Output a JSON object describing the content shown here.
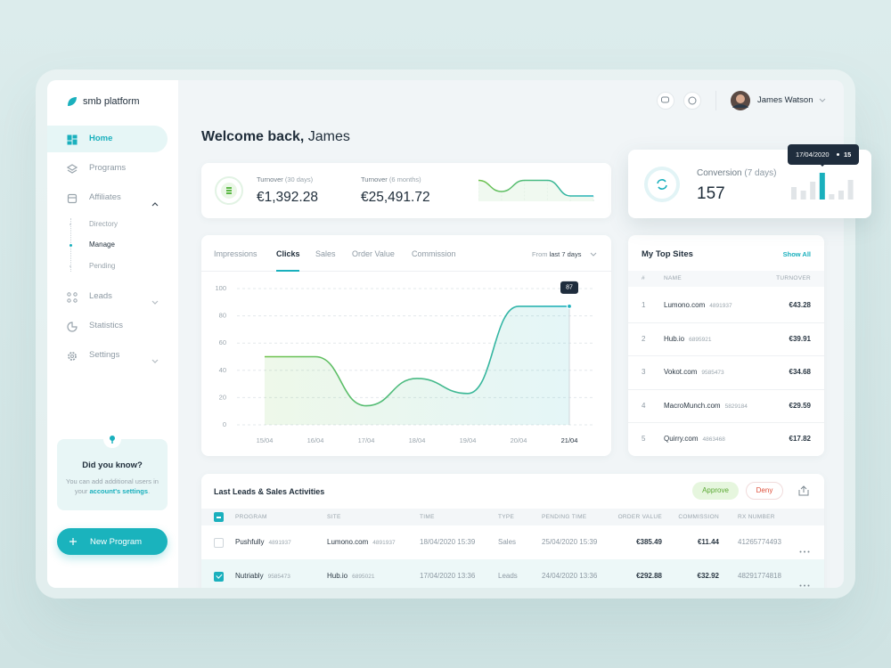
{
  "brand": "smb platform",
  "nav": [
    {
      "label": "Home",
      "active": true
    },
    {
      "label": "Programs"
    },
    {
      "label": "Affiliates",
      "submenu": "open",
      "children": [
        "Directory",
        "Manage",
        "Pending"
      ],
      "active_child": 1
    },
    {
      "label": "Leads",
      "submenu": "closed"
    },
    {
      "label": "Statistics"
    },
    {
      "label": "Settings",
      "submenu": "closed"
    }
  ],
  "tip": {
    "title": "Did you know?",
    "text": "You can add additional users in your",
    "link": "account's settings",
    "end": "."
  },
  "new_program": "New Program",
  "user": "James Watson",
  "welcome": {
    "greeting": "Welcome back,",
    "name": "James"
  },
  "turnover": [
    {
      "label": "Turnover",
      "period": "(30 days)",
      "value": "€1,392.28"
    },
    {
      "label": "Turnover",
      "period": "(6 months)",
      "value": "€25,491.72"
    }
  ],
  "sparkline": {
    "values": [
      18,
      8,
      18,
      18,
      4,
      4
    ],
    "ylim": [
      0,
      20
    ],
    "colors": [
      "#6fc24a",
      "#22b2be"
    ]
  },
  "conversion": {
    "label": "Conversion",
    "period": "(7 days)",
    "value": 157,
    "bars": [
      7,
      5,
      10,
      15,
      3,
      5,
      11
    ],
    "ylim": [
      0,
      15
    ],
    "highlight": 3,
    "tooltip_date": "17/04/2020",
    "color": "#1ab0bd",
    "muted": "#e1e5e8"
  },
  "chart_data": {
    "type": "line",
    "tabs": [
      "Impressions",
      "Clicks",
      "Sales",
      "Order Value",
      "Commission"
    ],
    "active_tab": 1,
    "range_prefix": "From",
    "range": "last 7 days",
    "categories": [
      "15/04",
      "16/04",
      "17/04",
      "18/04",
      "19/04",
      "20/04",
      "21/04"
    ],
    "values": [
      50,
      50,
      14,
      34,
      23,
      87,
      87
    ],
    "line_colors": [
      "#6fc24a",
      "#22b2be"
    ],
    "highlight": 6,
    "ylim": [
      0,
      100
    ],
    "yticks": [
      0,
      20,
      40,
      60,
      80,
      100
    ],
    "grid": true
  },
  "top_sites": {
    "title": "My Top Sites",
    "action": "Show All",
    "columns": [
      "#",
      "NAME",
      "TURNOVER"
    ],
    "rows": [
      [
        1,
        "Lumono.com",
        "4891937",
        "€43.28"
      ],
      [
        2,
        "Hub.io",
        "6895921",
        "€39.91"
      ],
      [
        3,
        "Vokot.com",
        "9585473",
        "€34.68"
      ],
      [
        4,
        "MacroMunch.com",
        "5829184",
        "€29.59"
      ],
      [
        5,
        "Quirry.com",
        "4863468",
        "€17.82"
      ]
    ]
  },
  "activities": {
    "title": "Last Leads & Sales Activities",
    "approve": "Approve",
    "deny": "Deny",
    "columns": [
      "PROGRAM",
      "SITE",
      "TIME",
      "TYPE",
      "PENDING TIME",
      "ORDER VALUE",
      "COMMISSION",
      "RX NUMBER"
    ],
    "rows": [
      {
        "checked": false,
        "program": "Pushfully",
        "program_id": "4891937",
        "site": "Lumono.com",
        "site_id": "4891937",
        "time": "18/04/2020 15:39",
        "type": "Sales",
        "pending_time": "25/04/2020 15:39",
        "order_value": "€385.49",
        "commission": "€11.44",
        "rx_number": "41265774493"
      },
      {
        "checked": true,
        "program": "Nutriably",
        "program_id": "9585473",
        "site": "Hub.io",
        "site_id": "6895021",
        "time": "17/04/2020 13:36",
        "type": "Leads",
        "pending_time": "24/04/2020 13:36",
        "order_value": "€292.88",
        "commission": "€32.92",
        "rx_number": "48291774818"
      }
    ]
  }
}
